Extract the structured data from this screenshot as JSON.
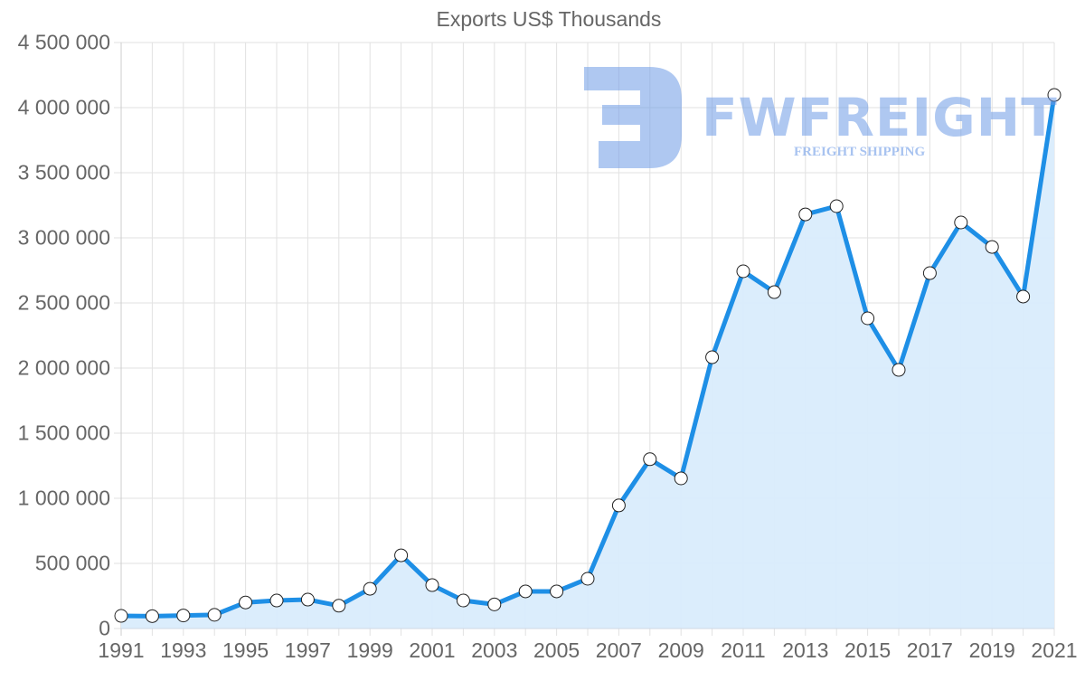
{
  "chart_data": {
    "type": "area",
    "title": "Exports US$ Thousands",
    "xlabel": "",
    "ylabel": "",
    "x": [
      1991,
      1992,
      1993,
      1994,
      1995,
      1996,
      1997,
      1998,
      1999,
      2000,
      2001,
      2002,
      2003,
      2004,
      2005,
      2006,
      2007,
      2008,
      2009,
      2010,
      2011,
      2012,
      2013,
      2014,
      2015,
      2016,
      2017,
      2018,
      2019,
      2020,
      2021
    ],
    "series": [
      {
        "name": "Exports US$ Thousands",
        "values": [
          97000,
          95000,
          100000,
          105000,
          200000,
          215000,
          222000,
          175000,
          305000,
          562000,
          333000,
          215000,
          185000,
          285000,
          285000,
          382000,
          945000,
          1300000,
          1153000,
          2083000,
          2743000,
          2583000,
          3180000,
          3243000,
          2382000,
          1986000,
          2729000,
          3118000,
          2930000,
          2549000,
          4097000
        ]
      }
    ],
    "ylim": [
      0,
      4500000
    ],
    "y_ticks": [
      "0",
      "500 000",
      "1 000 000",
      "1 500 000",
      "2 000 000",
      "2 500 000",
      "3 000 000",
      "3 500 000",
      "4 000 000",
      "4 500 000"
    ],
    "x_ticks": [
      "1991",
      "1993",
      "1995",
      "1997",
      "1999",
      "2001",
      "2003",
      "2005",
      "2007",
      "2009",
      "2011",
      "2013",
      "2015",
      "2017",
      "2019",
      "2021"
    ],
    "grid": true,
    "legend": "none",
    "colors": {
      "line": "#1e8fe6",
      "fill": "#d9ecfc",
      "grid": "#e2e2e2",
      "point_fill": "#ffffff",
      "point_stroke": "#222222"
    }
  },
  "watermark": {
    "brand": "FWFREIGHT",
    "tagline": "FREIGHT SHIPPING"
  }
}
